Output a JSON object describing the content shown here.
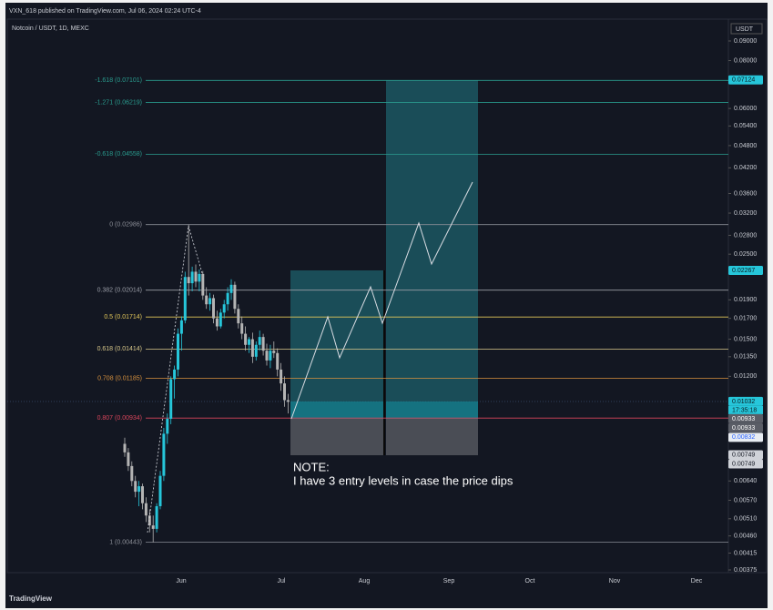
{
  "header": "VXN_618 published on TradingView.com, Jul 06, 2024 02:24 UTC-4",
  "footer": "TradingView",
  "chart_data": {
    "type": "candlestick",
    "title": "Notcoin / USDT, 1D, MEXC",
    "currency": "USDT",
    "log_scale": true,
    "ylim": [
      0.00375,
      0.09
    ],
    "yticks": [
      {
        "value": 0.09,
        "label": "0.09000"
      },
      {
        "value": 0.08,
        "label": "0.08000"
      },
      {
        "value": 0.06,
        "label": "0.06000"
      },
      {
        "value": 0.054,
        "label": "0.05400"
      },
      {
        "value": 0.048,
        "label": "0.04800"
      },
      {
        "value": 0.042,
        "label": "0.04200"
      },
      {
        "value": 0.036,
        "label": "0.03600"
      },
      {
        "value": 0.032,
        "label": "0.03200"
      },
      {
        "value": 0.028,
        "label": "0.02800"
      },
      {
        "value": 0.025,
        "label": "0.02500"
      },
      {
        "value": 0.019,
        "label": "0.01900"
      },
      {
        "value": 0.017,
        "label": "0.01700"
      },
      {
        "value": 0.015,
        "label": "0.01500"
      },
      {
        "value": 0.0135,
        "label": "0.01350"
      },
      {
        "value": 0.012,
        "label": "0.01200"
      },
      {
        "value": 0.0064,
        "label": "0.00640"
      },
      {
        "value": 0.0057,
        "label": "0.00570"
      },
      {
        "value": 0.0051,
        "label": "0.00510"
      },
      {
        "value": 0.0046,
        "label": "0.00460"
      },
      {
        "value": 0.00415,
        "label": "0.00415"
      },
      {
        "value": 0.00375,
        "label": "0.00375"
      }
    ],
    "categories": [
      "Jun",
      "Jul",
      "Aug",
      "Sep",
      "Oct",
      "Nov",
      "Dec"
    ],
    "open": [
      0.008,
      0.0076,
      0.007,
      0.0064,
      0.006,
      0.0062,
      0.0056,
      0.0052,
      0.0049,
      0.0048,
      0.0055,
      0.0066,
      0.0085,
      0.0093,
      0.0118,
      0.0125,
      0.0155,
      0.0168,
      0.0218,
      0.021,
      0.0225,
      0.0212,
      0.0222,
      0.0195,
      0.0185,
      0.0192,
      0.017,
      0.0162,
      0.0176,
      0.0185,
      0.0198,
      0.0208,
      0.018,
      0.0165,
      0.0155,
      0.0145,
      0.015,
      0.0135,
      0.0145,
      0.0152,
      0.014,
      0.0132,
      0.014,
      0.0138,
      0.0125,
      0.0115,
      0.0104
    ],
    "high": [
      0.0083,
      0.0078,
      0.0072,
      0.0066,
      0.0064,
      0.0063,
      0.0058,
      0.0054,
      0.0052,
      0.0056,
      0.0068,
      0.0088,
      0.0096,
      0.012,
      0.0128,
      0.016,
      0.0172,
      0.0225,
      0.02986,
      0.0232,
      0.0235,
      0.0228,
      0.0226,
      0.0205,
      0.0198,
      0.0196,
      0.0178,
      0.018,
      0.019,
      0.0205,
      0.0215,
      0.0212,
      0.0185,
      0.0172,
      0.0162,
      0.0152,
      0.0156,
      0.0148,
      0.0158,
      0.0155,
      0.0146,
      0.0145,
      0.0148,
      0.0142,
      0.013,
      0.012,
      0.0108
    ],
    "low": [
      0.0074,
      0.0068,
      0.0062,
      0.0058,
      0.0055,
      0.0054,
      0.005,
      0.0047,
      0.00443,
      0.0047,
      0.0054,
      0.0064,
      0.008,
      0.009,
      0.0105,
      0.012,
      0.014,
      0.0165,
      0.0195,
      0.02,
      0.0205,
      0.02,
      0.019,
      0.018,
      0.0178,
      0.0165,
      0.0158,
      0.016,
      0.017,
      0.0178,
      0.019,
      0.0175,
      0.016,
      0.015,
      0.014,
      0.0138,
      0.013,
      0.0132,
      0.014,
      0.0136,
      0.0128,
      0.0126,
      0.0134,
      0.012,
      0.011,
      0.01,
      0.0096
    ],
    "close": [
      0.0076,
      0.007,
      0.0064,
      0.006,
      0.0062,
      0.0056,
      0.0052,
      0.0049,
      0.0048,
      0.0055,
      0.0066,
      0.0085,
      0.0093,
      0.0118,
      0.0125,
      0.0155,
      0.0168,
      0.0218,
      0.021,
      0.0225,
      0.0212,
      0.0222,
      0.0195,
      0.0185,
      0.0192,
      0.017,
      0.0162,
      0.0176,
      0.0185,
      0.0198,
      0.0208,
      0.018,
      0.0165,
      0.0155,
      0.0145,
      0.015,
      0.0135,
      0.0145,
      0.0152,
      0.014,
      0.0132,
      0.014,
      0.0138,
      0.0125,
      0.0115,
      0.0104,
      0.0103
    ],
    "up_color": "#26c6da",
    "down_color": "#b4b4b4",
    "fib_levels": [
      {
        "label": "-1.618 (0.07101)",
        "value": 0.07101,
        "color": "#2a9d8f"
      },
      {
        "label": "-1.271 (0.06219)",
        "value": 0.06219,
        "color": "#2a9d8f"
      },
      {
        "label": "-0.618 (0.04558)",
        "value": 0.04558,
        "color": "#2a9d8f"
      },
      {
        "label": "0 (0.02986)",
        "value": 0.02986,
        "color": "#8a8d96"
      },
      {
        "label": "0.382 (0.02014)",
        "value": 0.02014,
        "color": "#9a9da6"
      },
      {
        "label": "0.5 (0.01714)",
        "value": 0.01714,
        "color": "#e3c75a"
      },
      {
        "label": "0.618 (0.01414)",
        "value": 0.01414,
        "color": "#d9c88a"
      },
      {
        "label": "0.708 (0.01185)",
        "value": 0.01185,
        "color": "#d7913e"
      },
      {
        "label": "0.807 (0.00934)",
        "value": 0.00934,
        "color": "#d9455b"
      },
      {
        "label": "1 (0.00443)",
        "value": 0.00443,
        "color": "#8a8d96"
      }
    ],
    "price_labels": [
      {
        "value": 0.07124,
        "bg": "#26c6da",
        "fg": "#0b1a1f"
      },
      {
        "value": 0.02267,
        "bg": "#26c6da",
        "fg": "#0b1a1f"
      },
      {
        "value": 0.01032,
        "bg": "#26c6da",
        "fg": "#0b1a1f"
      },
      {
        "value": 0.00933,
        "bg": "#5a5d66",
        "fg": "#ffffff"
      },
      {
        "value": 0.00933,
        "bg": "#5a5d66",
        "fg": "#ffffff"
      },
      {
        "value": 0.00832,
        "bg": "#e8ecf2",
        "fg": "#2962ff"
      },
      {
        "value": 0.00749,
        "bg": "#cfd2d8",
        "fg": "#131722"
      },
      {
        "value": 0.00749,
        "bg": "#cfd2d8",
        "fg": "#131722"
      }
    ],
    "countdown": "17:35:18",
    "note": [
      "NOTE:",
      "I have 3 entry levels in case the price dips"
    ]
  }
}
